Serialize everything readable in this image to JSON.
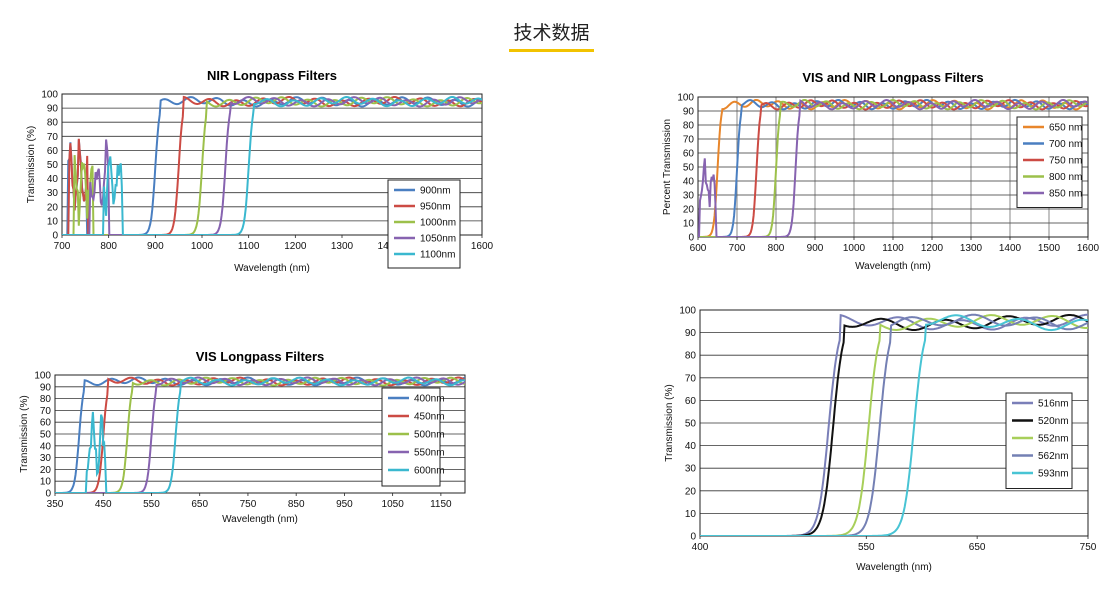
{
  "page": {
    "title": "技术数据"
  },
  "colors": {
    "accent": "#f2c300"
  },
  "chart_data": [
    {
      "type": "line",
      "title": "NIR Longpass Filters",
      "xlabel": "Wavelength (nm)",
      "ylabel": "Transmission (%)",
      "xlim": [
        700,
        1600
      ],
      "ylim": [
        0,
        100
      ],
      "xticks": [
        700,
        800,
        900,
        1000,
        1100,
        1200,
        1300,
        1400,
        1500,
        1600
      ],
      "yticks": [
        0,
        10,
        20,
        30,
        40,
        50,
        60,
        70,
        80,
        90,
        100
      ],
      "vgrid": false,
      "legend": "right",
      "series": [
        {
          "name": "900nm",
          "color": "#4a7fc1",
          "edge": 900,
          "noise": 712
        },
        {
          "name": "950nm",
          "color": "#cc4b44",
          "edge": 950,
          "noise": 715
        },
        {
          "name": "1000nm",
          "color": "#9cc04a",
          "edge": 1000,
          "noise": 727
        },
        {
          "name": "1050nm",
          "color": "#8763b0",
          "edge": 1050,
          "noise": 760
        },
        {
          "name": "1100nm",
          "color": "#3ab8cf",
          "edge": 1100,
          "noise": 790
        }
      ]
    },
    {
      "type": "line",
      "title": "VIS and NIR Longpass Filters",
      "xlabel": "Wavelength (nm)",
      "ylabel": "Percent Transmission",
      "xlim": [
        600,
        1600
      ],
      "ylim": [
        0,
        100
      ],
      "xticks": [
        600,
        700,
        800,
        900,
        1000,
        1100,
        1200,
        1300,
        1400,
        1500,
        1600
      ],
      "yticks": [
        0,
        10,
        20,
        30,
        40,
        50,
        60,
        70,
        80,
        90,
        100
      ],
      "vgrid": true,
      "legend": "right",
      "series": [
        {
          "name": "650 nm",
          "color": "#e8862b",
          "edge": 650,
          "noise": 0
        },
        {
          "name": "700 nm",
          "color": "#4a7fc1",
          "edge": 700,
          "noise": 0
        },
        {
          "name": "750 nm",
          "color": "#cc4b44",
          "edge": 750,
          "noise": 0
        },
        {
          "name": "800 nm",
          "color": "#9cc04a",
          "edge": 800,
          "noise": 0
        },
        {
          "name": "850 nm",
          "color": "#8763b0",
          "edge": 850,
          "noise": 605
        }
      ]
    },
    {
      "type": "line",
      "title": "VIS Longpass Filters",
      "xlabel": "Wavelength (nm)",
      "ylabel": "Transmission (%)",
      "xlim": [
        350,
        1200
      ],
      "ylim": [
        0,
        100
      ],
      "xticks": [
        350,
        450,
        550,
        650,
        750,
        850,
        950,
        1050,
        1150
      ],
      "yticks": [
        0,
        10,
        20,
        30,
        40,
        50,
        60,
        70,
        80,
        90,
        100
      ],
      "vgrid": false,
      "legend": "right",
      "series": [
        {
          "name": "400nm",
          "color": "#4a7fc1",
          "edge": 400,
          "noise": 0
        },
        {
          "name": "450nm",
          "color": "#cc4b44",
          "edge": 450,
          "noise": 0
        },
        {
          "name": "500nm",
          "color": "#9cc04a",
          "edge": 500,
          "noise": 0
        },
        {
          "name": "550nm",
          "color": "#8763b0",
          "edge": 550,
          "noise": 0
        },
        {
          "name": "600nm",
          "color": "#3ab8cf",
          "edge": 600,
          "noise": 415
        }
      ]
    },
    {
      "type": "line",
      "title": "",
      "xlabel": "Wavelength (nm)",
      "ylabel": "Transmission (%)",
      "xlim": [
        400,
        750
      ],
      "ylim": [
        0,
        100
      ],
      "xticks": [
        400,
        550,
        650,
        750
      ],
      "yticks": [
        0,
        10,
        20,
        30,
        40,
        50,
        60,
        70,
        80,
        90,
        100
      ],
      "vgrid": false,
      "legend": "right",
      "series": [
        {
          "name": "516nm",
          "color": "#7a7fb8",
          "edge": 516,
          "noise": 0
        },
        {
          "name": "520nm",
          "color": "#111111",
          "edge": 520,
          "noise": 0
        },
        {
          "name": "552nm",
          "color": "#a8cf5a",
          "edge": 552,
          "noise": 0
        },
        {
          "name": "562nm",
          "color": "#7480b4",
          "edge": 562,
          "noise": 0
        },
        {
          "name": "593nm",
          "color": "#48c4d4",
          "edge": 593,
          "noise": 0
        }
      ]
    }
  ]
}
